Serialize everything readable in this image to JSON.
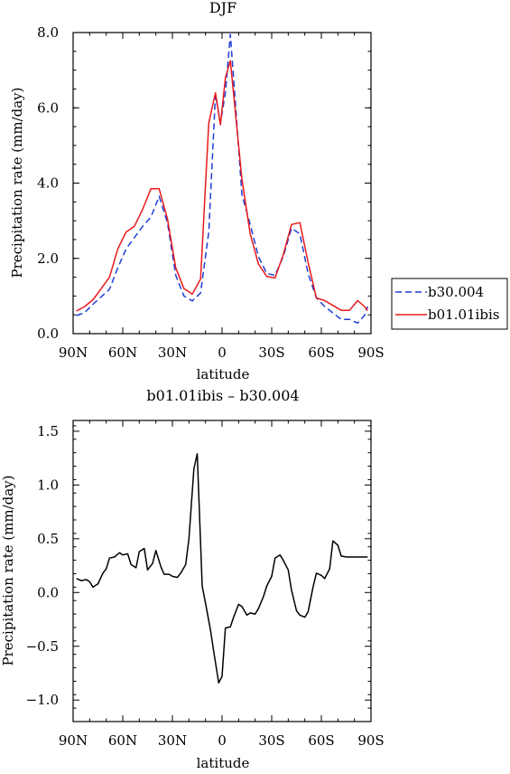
{
  "colors": {
    "axis": "#000000",
    "series_blue": "#1f3fd6",
    "series_red": "#e8191b",
    "difference": "#000000",
    "legend_border": "#000000"
  },
  "chart_data": [
    {
      "type": "line",
      "title": "DJF",
      "xlabel": "latitude",
      "ylabel": "Precipitation rate (mm/day)",
      "x_ticks": [
        {
          "value": 90,
          "label": "90N"
        },
        {
          "value": 60,
          "label": "60N"
        },
        {
          "value": 30,
          "label": "30N"
        },
        {
          "value": 0,
          "label": "0"
        },
        {
          "value": -30,
          "label": "30S"
        },
        {
          "value": -60,
          "label": "60S"
        },
        {
          "value": -90,
          "label": "90S"
        }
      ],
      "y_ticks": [
        {
          "value": 0.0,
          "label": "0.0"
        },
        {
          "value": 2.0,
          "label": "2.0"
        },
        {
          "value": 4.0,
          "label": "4.0"
        },
        {
          "value": 6.0,
          "label": "6.0"
        },
        {
          "value": 8.0,
          "label": "8.0"
        }
      ],
      "xlim": [
        90,
        -90
      ],
      "ylim": [
        0,
        8
      ],
      "grid": false,
      "legend": "right",
      "x": [
        88,
        83,
        78,
        73,
        68,
        63,
        58,
        53,
        48,
        43,
        38,
        33,
        28,
        23,
        18,
        13,
        8,
        4,
        1,
        -2,
        -5,
        -8,
        -12,
        -17,
        -22,
        -27,
        -32,
        -37,
        -42,
        -47,
        -52,
        -57,
        -62,
        -67,
        -72,
        -77,
        -82,
        -86,
        -88
      ],
      "series": [
        {
          "name": "b30.004",
          "color": "#1f3fd6",
          "dash": true,
          "values": [
            0.48,
            0.56,
            0.78,
            0.98,
            1.18,
            1.75,
            2.25,
            2.55,
            2.85,
            3.1,
            3.65,
            2.95,
            1.55,
            1.0,
            0.87,
            1.08,
            2.7,
            6.35,
            5.6,
            6.4,
            7.95,
            6.15,
            3.7,
            2.9,
            2.05,
            1.6,
            1.55,
            2.05,
            2.8,
            2.65,
            1.6,
            0.95,
            0.72,
            0.55,
            0.38,
            0.38,
            0.28,
            0.48,
            0.72
          ]
        },
        {
          "name": "b01.01ibis",
          "color": "#e8191b",
          "dash": false,
          "values": [
            0.6,
            0.72,
            0.9,
            1.2,
            1.5,
            2.25,
            2.7,
            2.85,
            3.3,
            3.85,
            3.85,
            3.05,
            1.75,
            1.2,
            1.05,
            1.45,
            5.6,
            6.4,
            5.55,
            6.8,
            7.25,
            5.9,
            4.1,
            2.65,
            1.85,
            1.52,
            1.48,
            2.1,
            2.9,
            2.95,
            1.9,
            0.95,
            0.88,
            0.75,
            0.62,
            0.62,
            0.88,
            0.72,
            0.62
          ]
        }
      ]
    },
    {
      "type": "line",
      "title": "b01.01ibis – b30.004",
      "xlabel": "latitude",
      "ylabel": "Precipitation rate (mm/day)",
      "x_ticks": [
        {
          "value": 90,
          "label": "90N"
        },
        {
          "value": 60,
          "label": "60N"
        },
        {
          "value": 30,
          "label": "30N"
        },
        {
          "value": 0,
          "label": "0"
        },
        {
          "value": -30,
          "label": "30S"
        },
        {
          "value": -60,
          "label": "60S"
        },
        {
          "value": -90,
          "label": "90S"
        }
      ],
      "y_ticks": [
        {
          "value": -1.0,
          "label": "−1.0"
        },
        {
          "value": -0.5,
          "label": "−0.5"
        },
        {
          "value": 0.0,
          "label": "0.0"
        },
        {
          "value": 0.5,
          "label": "0.5"
        },
        {
          "value": 1.0,
          "label": "1.0"
        },
        {
          "value": 1.5,
          "label": "1.5"
        }
      ],
      "xlim": [
        90,
        -90
      ],
      "ylim": [
        -1.2,
        1.6
      ],
      "grid": false,
      "x": [
        88,
        85,
        82,
        80,
        78,
        75,
        72,
        70,
        68,
        65,
        62,
        60,
        57,
        55,
        52,
        50,
        47,
        45,
        42,
        40,
        37,
        35,
        32,
        30,
        27,
        25,
        22,
        20,
        17,
        15,
        12,
        10,
        7,
        5,
        2,
        0,
        -2,
        -5,
        -7,
        -10,
        -12,
        -15,
        -17,
        -20,
        -22,
        -25,
        -27,
        -30,
        -32,
        -35,
        -37,
        -40,
        -42,
        -45,
        -47,
        -50,
        -52,
        -55,
        -57,
        -60,
        -62,
        -65,
        -67,
        -70,
        -72,
        -75,
        -77,
        -80,
        -82,
        -85,
        -88
      ],
      "values": [
        0.13,
        0.11,
        0.12,
        0.1,
        0.05,
        0.08,
        0.18,
        0.22,
        0.32,
        0.33,
        0.37,
        0.35,
        0.36,
        0.26,
        0.23,
        0.38,
        0.41,
        0.21,
        0.27,
        0.39,
        0.24,
        0.17,
        0.17,
        0.15,
        0.14,
        0.18,
        0.26,
        0.5,
        1.15,
        1.29,
        0.06,
        -0.1,
        -0.35,
        -0.55,
        -0.84,
        -0.78,
        -0.33,
        -0.32,
        -0.23,
        -0.11,
        -0.13,
        -0.21,
        -0.19,
        -0.2,
        -0.15,
        -0.04,
        0.06,
        0.15,
        0.32,
        0.35,
        0.3,
        0.21,
        0.02,
        -0.17,
        -0.21,
        -0.23,
        -0.18,
        0.05,
        0.18,
        0.16,
        0.13,
        0.22,
        0.48,
        0.44,
        0.34,
        0.33,
        0.33,
        0.33,
        0.33,
        0.33,
        0.33
      ]
    }
  ]
}
